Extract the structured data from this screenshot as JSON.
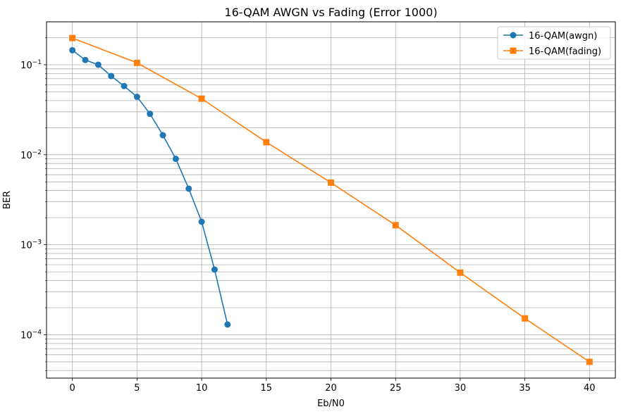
{
  "chart_data": {
    "type": "line",
    "title": "16-QAM AWGN vs Fading (Error 1000)",
    "xlabel": "Eb/N0",
    "ylabel": "BER",
    "xlim": [
      -2,
      42
    ],
    "ylim": [
      3.3e-05,
      0.3
    ],
    "yscale": "log",
    "grid": true,
    "grid_minor": true,
    "legend_position": "top-right",
    "x_ticks": [
      0,
      5,
      10,
      15,
      20,
      25,
      30,
      35,
      40
    ],
    "x_tick_labels": [
      "0",
      "5",
      "10",
      "15",
      "20",
      "25",
      "30",
      "35",
      "40"
    ],
    "y_ticks": [
      0.0001,
      0.001,
      0.01,
      0.1
    ],
    "y_tick_labels": [
      {
        "base": "10",
        "exp": "−4"
      },
      {
        "base": "10",
        "exp": "−3"
      },
      {
        "base": "10",
        "exp": "−2"
      },
      {
        "base": "10",
        "exp": "−1"
      }
    ],
    "series": [
      {
        "name": "16-QAM(awgn)",
        "color": "#1f77b4",
        "marker": "circle",
        "x": [
          0,
          1,
          2,
          3,
          4,
          5,
          6,
          7,
          8,
          9,
          10,
          11,
          12
        ],
        "y": [
          0.145,
          0.113,
          0.1,
          0.075,
          0.058,
          0.044,
          0.0285,
          0.0165,
          0.009,
          0.0042,
          0.0018,
          0.00053,
          0.00013
        ]
      },
      {
        "name": "16-QAM(fading)",
        "color": "#ff7f0e",
        "marker": "square",
        "x": [
          0,
          5,
          10,
          15,
          20,
          25,
          30,
          35,
          40
        ],
        "y": [
          0.198,
          0.105,
          0.042,
          0.0138,
          0.0049,
          0.00165,
          0.00049,
          0.000152,
          5e-05
        ]
      }
    ]
  }
}
